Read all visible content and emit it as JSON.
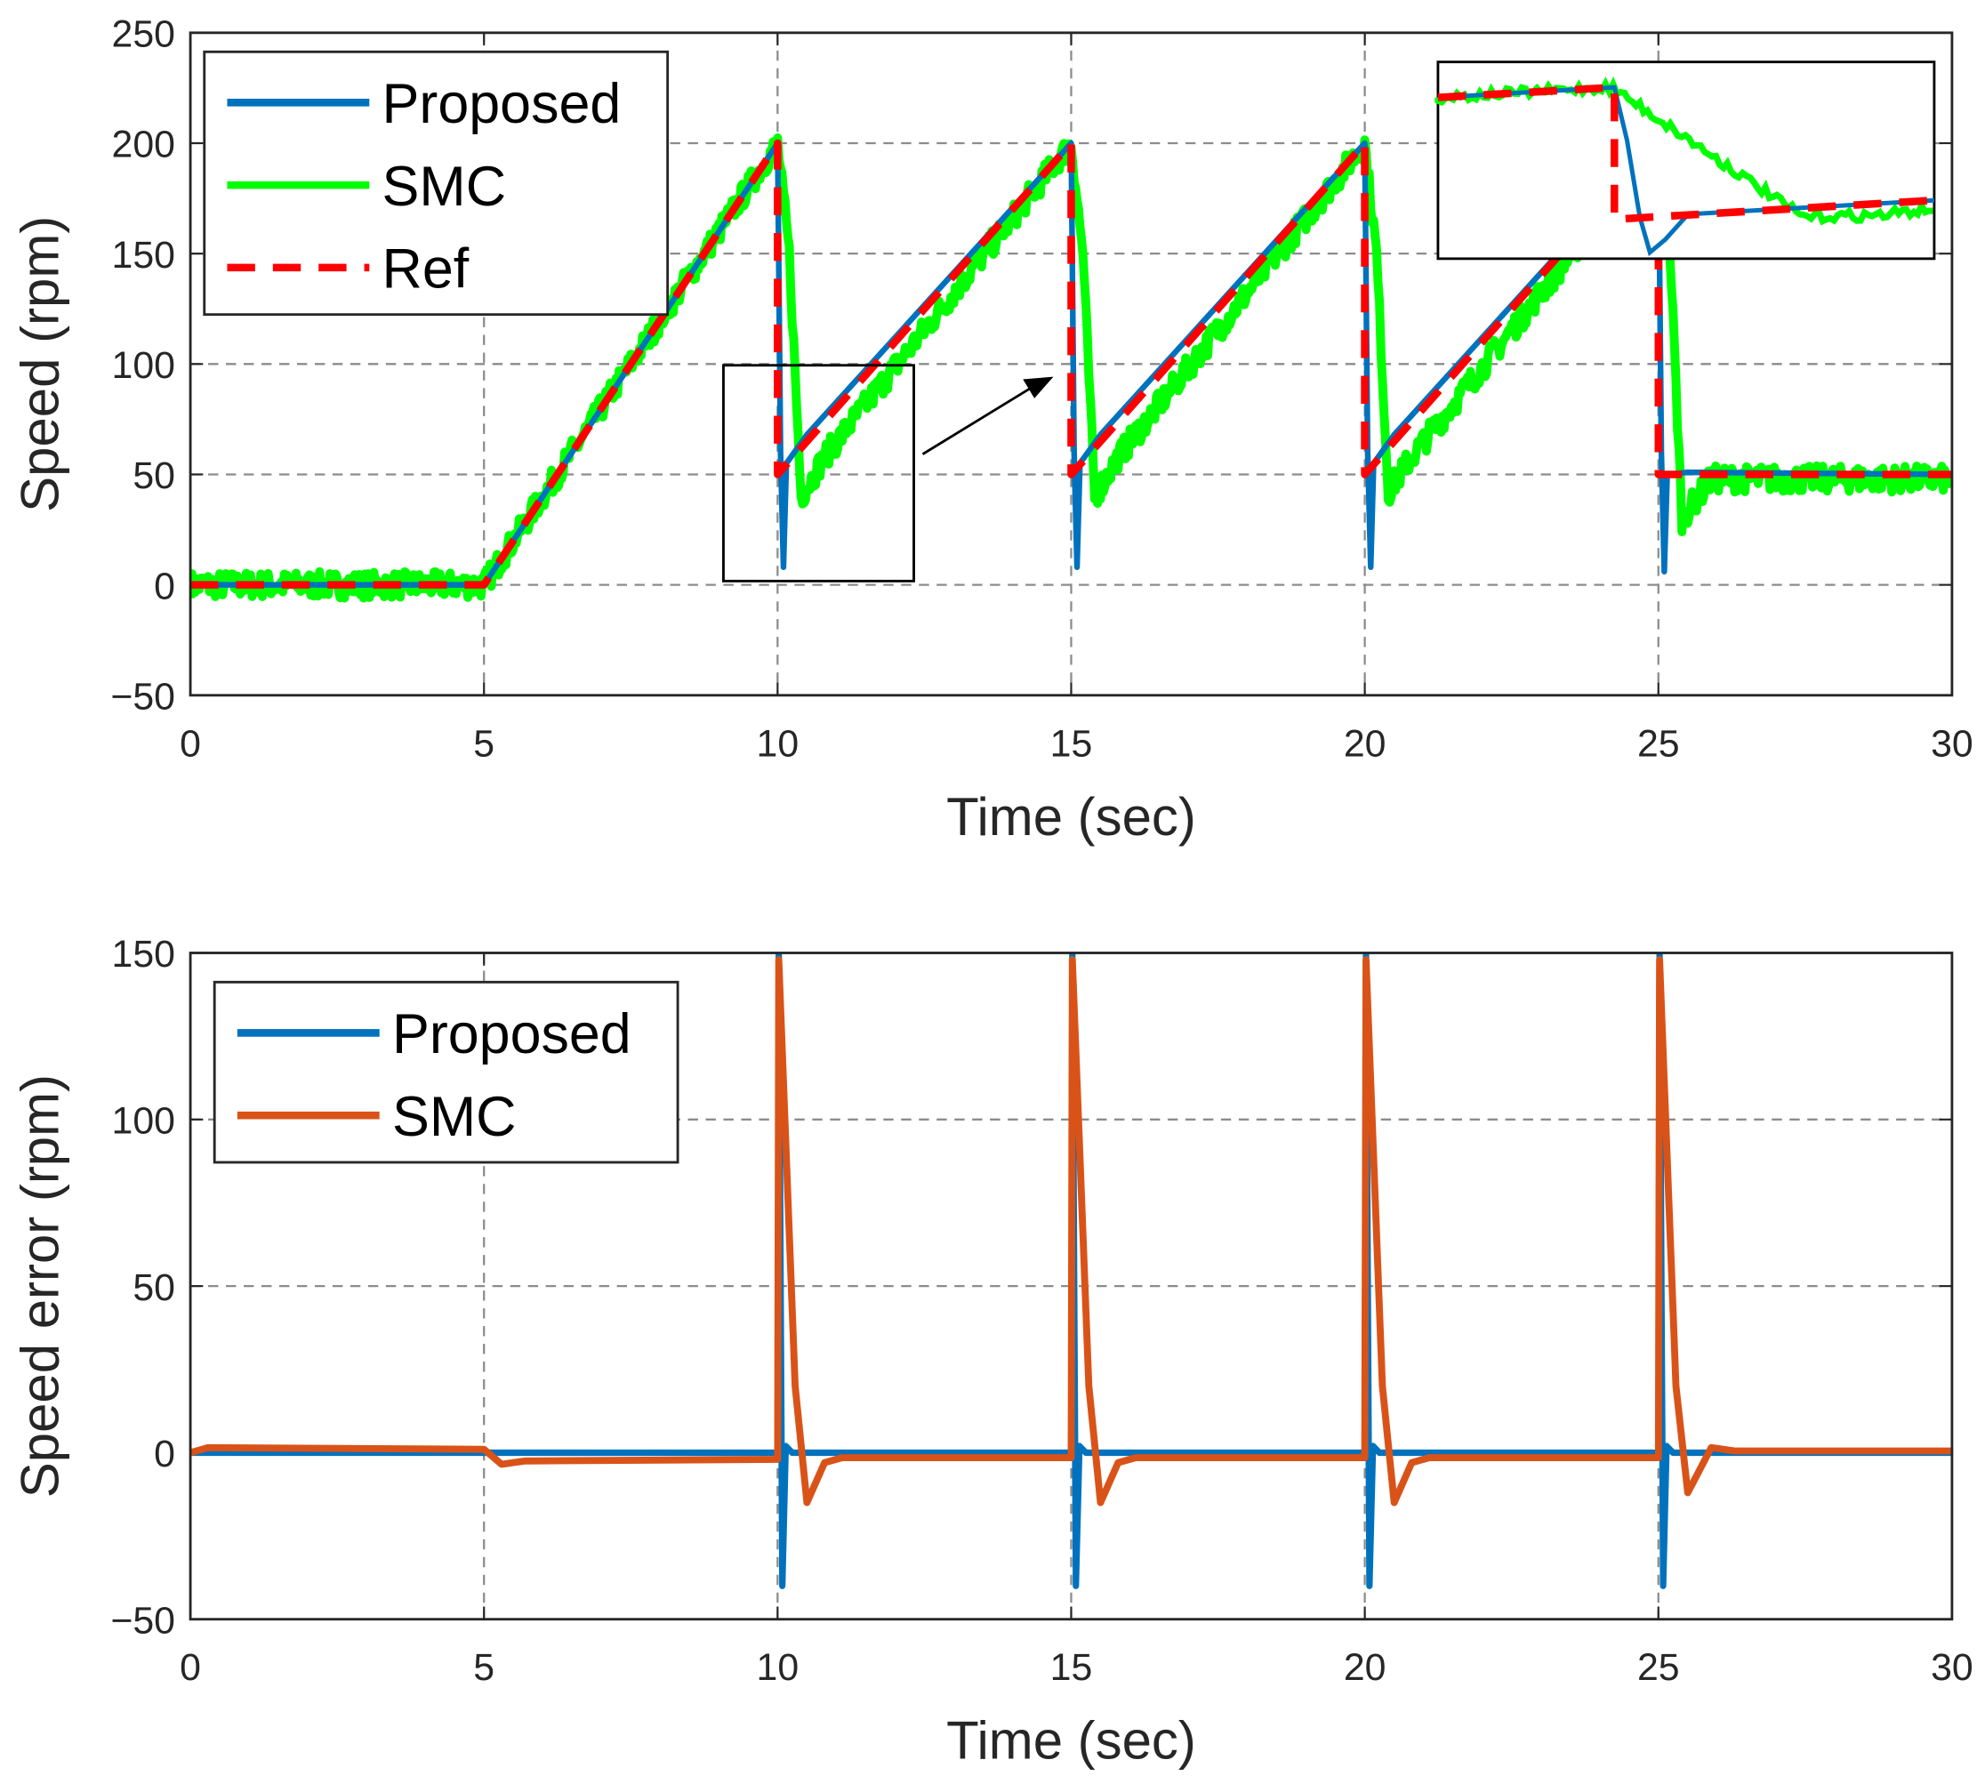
{
  "chart_data": [
    {
      "type": "line",
      "xlabel": "Time (sec)",
      "ylabel": "Speed (rpm)",
      "xlim": [
        0,
        30
      ],
      "ylim": [
        -50,
        250
      ],
      "xticks": [
        "0",
        "5",
        "10",
        "15",
        "20",
        "25",
        "30"
      ],
      "yticks": [
        "250",
        "200",
        "150",
        "100",
        "50",
        "0",
        "−50"
      ],
      "grid": true,
      "legend_position": "top-left",
      "series": [
        {
          "name": "Proposed",
          "color": "#0072bd",
          "style": "solid",
          "points": [
            [
              0,
              0
            ],
            [
              5,
              0
            ],
            [
              10,
              200
            ],
            [
              10.05,
              60
            ],
            [
              10.1,
              8
            ],
            [
              10.15,
              55
            ],
            [
              10.5,
              68
            ],
            [
              15,
              200
            ],
            [
              15.05,
              60
            ],
            [
              15.1,
              8
            ],
            [
              15.15,
              55
            ],
            [
              15.5,
              68
            ],
            [
              20,
              200
            ],
            [
              20.05,
              60
            ],
            [
              20.1,
              8
            ],
            [
              20.15,
              55
            ],
            [
              20.5,
              68
            ],
            [
              25,
              200
            ],
            [
              25.05,
              60
            ],
            [
              25.1,
              6
            ],
            [
              25.15,
              50
            ],
            [
              25.5,
              51
            ],
            [
              30,
              50
            ]
          ]
        },
        {
          "name": "SMC",
          "color": "#00ff00",
          "style": "solid-noisy",
          "points": [
            [
              0,
              0
            ],
            [
              5,
              0
            ],
            [
              10,
              200
            ],
            [
              10.2,
              150
            ],
            [
              10.4,
              40
            ],
            [
              10.8,
              58
            ],
            [
              15,
              200
            ],
            [
              15.2,
              150
            ],
            [
              15.4,
              40
            ],
            [
              15.8,
              58
            ],
            [
              20,
              200
            ],
            [
              20.2,
              150
            ],
            [
              20.4,
              42
            ],
            [
              20.8,
              58
            ],
            [
              25,
              200
            ],
            [
              25.2,
              150
            ],
            [
              25.4,
              30
            ],
            [
              25.9,
              48
            ],
            [
              30,
              48
            ]
          ]
        },
        {
          "name": "Ref",
          "color": "#ff0000",
          "style": "dashed",
          "points": [
            [
              0,
              0
            ],
            [
              5,
              0
            ],
            [
              10,
              200
            ],
            [
              10,
              50
            ],
            [
              15,
              200
            ],
            [
              15,
              50
            ],
            [
              20,
              200
            ],
            [
              20,
              50
            ],
            [
              25,
              200
            ],
            [
              25,
              50
            ],
            [
              30,
              50
            ]
          ]
        }
      ]
    },
    {
      "type": "line",
      "xlabel": "Time (sec)",
      "ylabel": "Speed error (rpm)",
      "xlim": [
        0,
        30
      ],
      "ylim": [
        -50,
        150
      ],
      "xticks": [
        "0",
        "5",
        "10",
        "15",
        "20",
        "25",
        "30"
      ],
      "yticks": [
        "150",
        "100",
        "50",
        "0",
        "−50"
      ],
      "grid": true,
      "legend_position": "top-left",
      "series": [
        {
          "name": "Proposed",
          "color": "#0072bd",
          "points": [
            [
              0,
              0
            ],
            [
              10,
              0
            ],
            [
              10.02,
              150
            ],
            [
              10.08,
              -40
            ],
            [
              10.14,
              2
            ],
            [
              10.25,
              0
            ],
            [
              15,
              0
            ],
            [
              15.02,
              150
            ],
            [
              15.08,
              -40
            ],
            [
              15.14,
              2
            ],
            [
              15.25,
              0
            ],
            [
              20,
              0
            ],
            [
              20.02,
              150
            ],
            [
              20.08,
              -40
            ],
            [
              20.14,
              2
            ],
            [
              20.25,
              0
            ],
            [
              25,
              0
            ],
            [
              25.02,
              150
            ],
            [
              25.08,
              -40
            ],
            [
              25.14,
              2
            ],
            [
              25.25,
              0
            ],
            [
              30,
              0
            ]
          ]
        },
        {
          "name": "SMC",
          "color": "#d95319",
          "points": [
            [
              0,
              0
            ],
            [
              0.3,
              1.5
            ],
            [
              5,
              1
            ],
            [
              5.3,
              -3.5
            ],
            [
              5.7,
              -2.5
            ],
            [
              10,
              -2
            ],
            [
              10.02,
              148
            ],
            [
              10.3,
              20
            ],
            [
              10.5,
              -15
            ],
            [
              10.8,
              -3
            ],
            [
              11.1,
              -1.5
            ],
            [
              15,
              -1.5
            ],
            [
              15.02,
              148
            ],
            [
              15.3,
              20
            ],
            [
              15.5,
              -15
            ],
            [
              15.8,
              -3
            ],
            [
              16.1,
              -1.5
            ],
            [
              20,
              -1.5
            ],
            [
              20.02,
              148
            ],
            [
              20.3,
              20
            ],
            [
              20.5,
              -15
            ],
            [
              20.8,
              -3
            ],
            [
              21.1,
              -1.5
            ],
            [
              25,
              -1.5
            ],
            [
              25.02,
              148
            ],
            [
              25.3,
              20
            ],
            [
              25.5,
              -12
            ],
            [
              25.9,
              1.5
            ],
            [
              26.3,
              0.5
            ],
            [
              30,
              0.5
            ]
          ]
        }
      ]
    }
  ]
}
